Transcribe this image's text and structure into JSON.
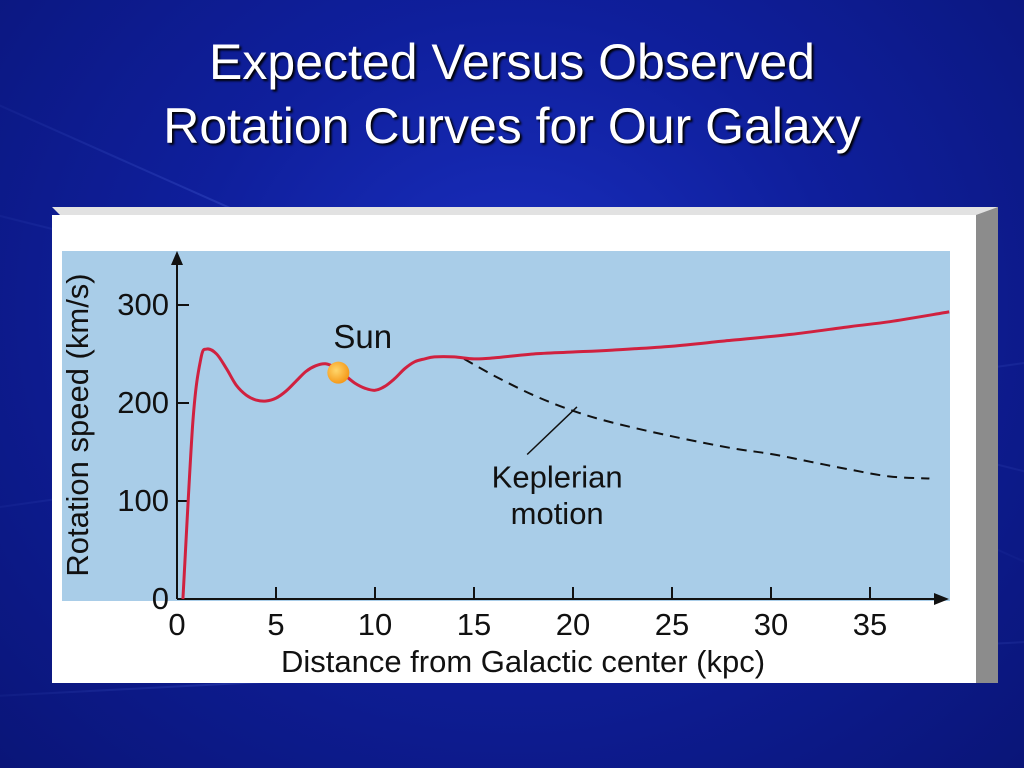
{
  "slide": {
    "title_line1": "Expected Versus Observed",
    "title_line2": "Rotation Curves for Our Galaxy"
  },
  "colors": {
    "background": "#0f1f9c",
    "plot_area": "#a9cde8",
    "observed_curve": "#d0213f",
    "keplerian_curve": "#111111",
    "sun": "#f5a623"
  },
  "chart_data": {
    "type": "line",
    "title": "",
    "xlabel": "Distance from Galactic center (kpc)",
    "ylabel": "Rotation speed (km/s)",
    "xlim": [
      0,
      39
    ],
    "ylim": [
      0,
      350
    ],
    "x_ticks": [
      "0",
      "5",
      "10",
      "15",
      "20",
      "25",
      "30",
      "35"
    ],
    "y_ticks": [
      "0",
      "100",
      "200",
      "300"
    ],
    "grid": false,
    "series": [
      {
        "style": "solid",
        "x": [
          0.3,
          0.8,
          1.2,
          1.5,
          2,
          2.5,
          3,
          3.5,
          4,
          4.5,
          5,
          5.5,
          6,
          6.5,
          7,
          7.5,
          8,
          8.5,
          9,
          9.5,
          10,
          10.5,
          11,
          11.5,
          12,
          12.5,
          13,
          14,
          15,
          16,
          18,
          20,
          22,
          25,
          28,
          31,
          34,
          36,
          39
        ],
        "y": [
          0,
          180,
          245,
          255,
          250,
          235,
          218,
          208,
          203,
          202,
          205,
          212,
          222,
          232,
          238,
          240,
          236,
          228,
          220,
          215,
          213,
          217,
          225,
          235,
          242,
          245,
          247,
          247,
          245,
          246,
          250,
          252,
          254,
          258,
          264,
          270,
          278,
          283,
          293
        ]
      },
      {
        "name": "Keplerian motion",
        "style": "dashed",
        "x": [
          14.5,
          16,
          18,
          20,
          22,
          25,
          28,
          30,
          32,
          34,
          36,
          38
        ],
        "y": [
          245,
          228,
          208,
          192,
          180,
          166,
          154,
          148,
          140,
          132,
          125,
          123
        ]
      }
    ],
    "annotations": [
      {
        "text": "Sun",
        "x": 8.3,
        "y": 233
      },
      {
        "text": "Keplerian",
        "x": 19.2,
        "y": 125
      },
      {
        "text": "motion",
        "x": 19.2,
        "y": 88
      }
    ]
  }
}
